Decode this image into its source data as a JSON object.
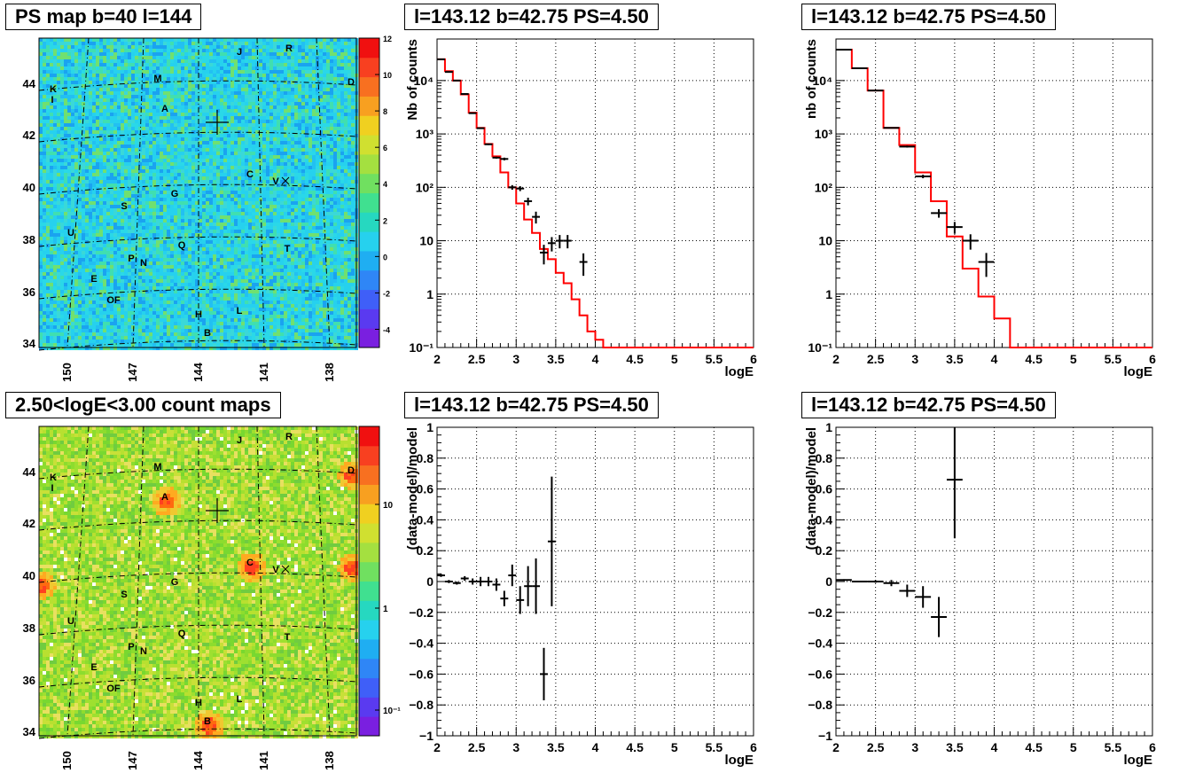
{
  "pads": {
    "ps_map_title": "PS map b=40 l=144",
    "count_map_title": "2.50<logE<3.00 count maps",
    "spec1_title": "l=143.12 b=42.75 PS=4.50",
    "spec2_title": "l=143.12 b=42.75 PS=4.50",
    "res1_title": "l=143.12 b=42.75 PS=4.50",
    "res2_title": "l=143.12 b=42.75 PS=4.50"
  },
  "maps": {
    "x_ticks": [
      "150",
      "147",
      "144",
      "141",
      "138"
    ],
    "y_ticks": [
      "34",
      "36",
      "38",
      "40",
      "42",
      "44"
    ],
    "sources": [
      "J",
      "R",
      "M",
      "D",
      "K",
      "I",
      "A",
      "C",
      "V",
      "G",
      "S",
      "U",
      "Q",
      "T",
      "P",
      "N",
      "E",
      "OF",
      "H",
      "L",
      "B"
    ],
    "ps_colorbar_ticks": [
      "12",
      "10",
      "8",
      "6",
      "4",
      "2",
      "0",
      "-2",
      "-4"
    ],
    "count_colorbar_ticks": [
      "10",
      "1",
      "10⁻¹"
    ],
    "colors": {
      "ps_background": "#26d1ee",
      "count_background": "#8ddc2e",
      "grid": "#000000"
    }
  },
  "chart_data": [
    {
      "type": "line",
      "id": "spec1",
      "title": "l=143.12 b=42.75 PS=4.50",
      "xlabel": "logE",
      "ylabel": "Nb of counts",
      "xlim": [
        2,
        6
      ],
      "ylim": [
        0.1,
        60000
      ],
      "yscale": "log",
      "grid": true,
      "x_ticks": [
        "2",
        "2.5",
        "3",
        "3.5",
        "4",
        "4.5",
        "5",
        "5.5",
        "6"
      ],
      "y_ticks": [
        "10⁻¹",
        "1",
        "10",
        "10²",
        "10³",
        "10⁴"
      ],
      "model": {
        "color": "#ff0000",
        "edges": [
          2.0,
          2.1,
          2.2,
          2.3,
          2.4,
          2.5,
          2.6,
          2.7,
          2.8,
          2.9,
          3.0,
          3.1,
          3.2,
          3.3,
          3.4,
          3.5,
          3.6,
          3.7,
          3.8,
          3.9,
          4.0,
          4.1,
          4.2,
          6.0
        ],
        "values": [
          25000,
          15000,
          10000,
          5500,
          2500,
          1300,
          650,
          380,
          190,
          100,
          50,
          25,
          14,
          7,
          4.5,
          2.5,
          1.6,
          0.8,
          0.4,
          0.2,
          0.14,
          0.1,
          0.1
        ]
      },
      "data": {
        "color": "#000000",
        "x": [
          2.05,
          2.15,
          2.25,
          2.35,
          2.45,
          2.55,
          2.65,
          2.75,
          2.85,
          2.95,
          3.05,
          3.15,
          3.25,
          3.35,
          3.45,
          3.55,
          3.65,
          3.85
        ],
        "y": [
          25000,
          14500,
          10000,
          5600,
          2450,
          1280,
          640,
          360,
          340,
          100,
          95,
          55,
          28,
          6,
          9,
          10,
          10,
          4
        ],
        "xerr": [
          0.05,
          0.05,
          0.05,
          0.05,
          0.05,
          0.05,
          0.05,
          0.05,
          0.05,
          0.05,
          0.05,
          0.05,
          0.05,
          0.05,
          0.05,
          0.05,
          0.05,
          0.05
        ],
        "ylo": [
          24800,
          14300,
          9900,
          5520,
          2400,
          1250,
          620,
          345,
          320,
          90,
          85,
          46,
          21,
          3.6,
          6.3,
          7.2,
          7.2,
          2.2
        ],
        "yhi": [
          25200,
          14700,
          10100,
          5680,
          2500,
          1310,
          660,
          375,
          360,
          110,
          105,
          64,
          35,
          8.4,
          11.7,
          12.8,
          12.8,
          5.8
        ]
      }
    },
    {
      "type": "line",
      "id": "spec2",
      "title": "l=143.12 b=42.75 PS=4.50",
      "xlabel": "logE",
      "ylabel": "nb of counts",
      "xlim": [
        2,
        6
      ],
      "ylim": [
        0.1,
        60000
      ],
      "yscale": "log",
      "grid": true,
      "x_ticks": [
        "2",
        "2.5",
        "3",
        "3.5",
        "4",
        "4.5",
        "5",
        "5.5",
        "6"
      ],
      "y_ticks": [
        "10⁻¹",
        "1",
        "10",
        "10²",
        "10³",
        "10⁴"
      ],
      "model": {
        "color": "#ff0000",
        "edges": [
          2.0,
          2.2,
          2.4,
          2.6,
          2.8,
          3.0,
          3.2,
          3.4,
          3.6,
          3.8,
          4.0,
          4.2,
          6.0
        ],
        "values": [
          38000,
          17000,
          6500,
          1300,
          620,
          190,
          55,
          12,
          3,
          0.9,
          0.35,
          0.1
        ]
      },
      "data": {
        "color": "#000000",
        "x": [
          2.1,
          2.3,
          2.5,
          2.7,
          2.9,
          3.1,
          3.3,
          3.5,
          3.7,
          3.9
        ],
        "y": [
          38000,
          17000,
          6500,
          1300,
          580,
          160,
          33,
          18,
          10,
          4
        ],
        "xerr": [
          0.1,
          0.1,
          0.1,
          0.1,
          0.1,
          0.1,
          0.1,
          0.1,
          0.1,
          0.1
        ],
        "ylo": [
          37800,
          16800,
          6400,
          1270,
          555,
          148,
          27,
          13.5,
          6.8,
          2.1
        ],
        "yhi": [
          38200,
          17200,
          6600,
          1330,
          605,
          172,
          39,
          22.5,
          13.2,
          5.9
        ]
      }
    },
    {
      "type": "scatter",
      "id": "res1",
      "title": "l=143.12 b=42.75 PS=4.50",
      "xlabel": "logE",
      "ylabel": "(data-model)/model",
      "xlim": [
        2,
        6
      ],
      "ylim": [
        -1,
        1
      ],
      "grid": true,
      "x_ticks": [
        "2",
        "2.5",
        "3",
        "3.5",
        "4",
        "4.5",
        "5",
        "5.5",
        "6"
      ],
      "y_ticks": [
        "−1",
        "−0.8",
        "−0.6",
        "−0.4",
        "−0.2",
        "0",
        "0.2",
        "0.4",
        "0.6",
        "0.8",
        "1"
      ],
      "data": {
        "color": "#000000",
        "x": [
          2.05,
          2.15,
          2.25,
          2.35,
          2.45,
          2.55,
          2.65,
          2.75,
          2.85,
          2.95,
          3.05,
          3.15,
          3.25,
          3.35,
          3.45
        ],
        "y": [
          0.04,
          0.0,
          -0.01,
          0.02,
          0.0,
          0.0,
          0.0,
          -0.02,
          -0.11,
          0.04,
          -0.12,
          -0.03,
          -0.03,
          -0.6,
          0.26
        ],
        "xerr": [
          0.05,
          0.05,
          0.05,
          0.05,
          0.05,
          0.05,
          0.05,
          0.05,
          0.05,
          0.05,
          0.05,
          0.05,
          0.05,
          0.05,
          0.05
        ],
        "yerr": [
          0.01,
          0.01,
          0.01,
          0.015,
          0.02,
          0.03,
          0.03,
          0.04,
          0.05,
          0.07,
          0.09,
          0.13,
          0.18,
          0.17,
          0.42
        ]
      }
    },
    {
      "type": "scatter",
      "id": "res2",
      "title": "l=143.12 b=42.75 PS=4.50",
      "xlabel": "logE",
      "ylabel": "(data-model)/model",
      "xlim": [
        2,
        6
      ],
      "ylim": [
        -1,
        1
      ],
      "grid": true,
      "x_ticks": [
        "2",
        "2.5",
        "3",
        "3.5",
        "4",
        "4.5",
        "5",
        "5.5",
        "6"
      ],
      "y_ticks": [
        "−1",
        "−0.8",
        "−0.6",
        "−0.4",
        "−0.2",
        "0",
        "0.2",
        "0.4",
        "0.6",
        "0.8",
        "1"
      ],
      "data": {
        "color": "#000000",
        "x": [
          2.1,
          2.3,
          2.5,
          2.7,
          2.9,
          3.1,
          3.3,
          3.5
        ],
        "y": [
          0.01,
          0.0,
          0.0,
          -0.01,
          -0.06,
          -0.1,
          -0.23,
          0.66
        ],
        "xerr": [
          0.1,
          0.1,
          0.1,
          0.1,
          0.1,
          0.1,
          0.1,
          0.1
        ],
        "yerr": [
          0.005,
          0.005,
          0.008,
          0.02,
          0.04,
          0.07,
          0.13,
          0.38
        ]
      }
    }
  ]
}
